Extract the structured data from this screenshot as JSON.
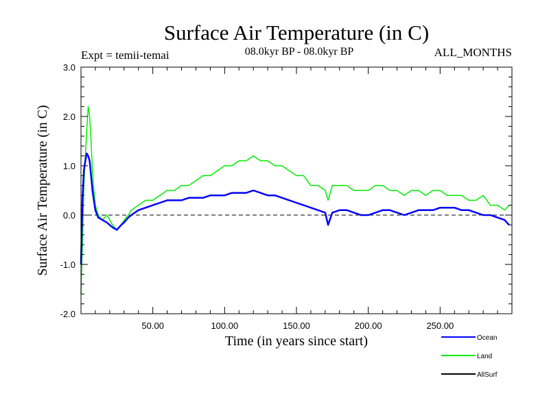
{
  "chart_data": {
    "type": "line",
    "title": "Surface Air Temperature (in C)",
    "subtitle_left": "Expt = temii-temai",
    "subtitle_center": "08.0kyr BP - 08.0kyr BP",
    "subtitle_right": "ALL_MONTHS",
    "xlabel": "Time (in years since start)",
    "ylabel": "Surface Air Temperature (in C)",
    "xlim": [
      0,
      300
    ],
    "ylim": [
      -2.0,
      3.0
    ],
    "x_ticks": [
      {
        "value": 50,
        "label": "50.00"
      },
      {
        "value": 100,
        "label": "100.00"
      },
      {
        "value": 150,
        "label": "150.00"
      },
      {
        "value": 200,
        "label": "200.00"
      },
      {
        "value": 250,
        "label": "250.00"
      }
    ],
    "y_ticks": [
      {
        "value": 3.0,
        "label": "3.0"
      },
      {
        "value": 2.0,
        "label": "2.0"
      },
      {
        "value": 1.0,
        "label": "1.0"
      },
      {
        "value": 0.0,
        "label": "0.0"
      },
      {
        "value": -1.0,
        "label": "-1.0"
      },
      {
        "value": -2.0,
        "label": "-2.0"
      }
    ],
    "reference_line": {
      "y": 0.0,
      "style": "dashed"
    },
    "legend_position": "bottom-right",
    "series": [
      {
        "name": "Land",
        "color": "#00ee00",
        "x": [
          0,
          1,
          2,
          3,
          4,
          5,
          6,
          7,
          8,
          9,
          10,
          12,
          15,
          18,
          20,
          22,
          25,
          28,
          30,
          33,
          35,
          40,
          45,
          50,
          55,
          60,
          65,
          70,
          75,
          80,
          85,
          90,
          95,
          100,
          105,
          110,
          115,
          120,
          125,
          130,
          135,
          140,
          145,
          150,
          155,
          160,
          165,
          170,
          172,
          175,
          180,
          185,
          190,
          195,
          200,
          205,
          210,
          215,
          220,
          225,
          230,
          235,
          240,
          245,
          250,
          255,
          260,
          265,
          270,
          275,
          280,
          285,
          290,
          295,
          298
        ],
        "values": [
          -1.6,
          -0.6,
          0.6,
          1.2,
          1.7,
          2.2,
          2.0,
          1.5,
          0.9,
          0.5,
          0.2,
          0.0,
          -0.1,
          0.0,
          -0.1,
          -0.2,
          -0.3,
          -0.2,
          -0.1,
          0.0,
          0.1,
          0.2,
          0.3,
          0.3,
          0.4,
          0.5,
          0.5,
          0.6,
          0.6,
          0.7,
          0.8,
          0.8,
          0.9,
          1.0,
          1.0,
          1.1,
          1.1,
          1.2,
          1.1,
          1.1,
          1.0,
          1.0,
          0.9,
          0.8,
          0.8,
          0.6,
          0.6,
          0.5,
          0.3,
          0.6,
          0.6,
          0.6,
          0.5,
          0.5,
          0.5,
          0.6,
          0.6,
          0.5,
          0.5,
          0.4,
          0.5,
          0.5,
          0.4,
          0.5,
          0.5,
          0.4,
          0.4,
          0.4,
          0.3,
          0.3,
          0.4,
          0.2,
          0.2,
          0.1,
          0.2
        ]
      },
      {
        "name": "Ocean",
        "color": "#0000ff",
        "x": [
          0,
          1,
          2,
          3,
          4,
          5,
          6,
          7,
          8,
          9,
          10,
          12,
          15,
          18,
          20,
          22,
          25,
          28,
          30,
          33,
          35,
          40,
          45,
          50,
          55,
          60,
          65,
          70,
          75,
          80,
          85,
          90,
          95,
          100,
          105,
          110,
          115,
          120,
          125,
          130,
          135,
          140,
          145,
          150,
          155,
          160,
          165,
          170,
          172,
          175,
          180,
          185,
          190,
          195,
          200,
          205,
          210,
          215,
          220,
          225,
          230,
          235,
          240,
          245,
          250,
          255,
          260,
          265,
          270,
          275,
          280,
          285,
          290,
          295,
          298
        ],
        "values": [
          -1.0,
          0.3,
          0.9,
          1.1,
          1.25,
          1.2,
          1.1,
          0.8,
          0.5,
          0.3,
          0.1,
          -0.05,
          -0.1,
          -0.15,
          -0.2,
          -0.25,
          -0.3,
          -0.2,
          -0.15,
          -0.05,
          0.0,
          0.1,
          0.15,
          0.2,
          0.25,
          0.3,
          0.3,
          0.3,
          0.35,
          0.35,
          0.35,
          0.4,
          0.4,
          0.4,
          0.45,
          0.45,
          0.45,
          0.5,
          0.45,
          0.4,
          0.4,
          0.35,
          0.3,
          0.25,
          0.2,
          0.15,
          0.1,
          0.05,
          -0.2,
          0.05,
          0.1,
          0.1,
          0.05,
          0.0,
          0.0,
          0.05,
          0.1,
          0.1,
          0.05,
          0.0,
          0.05,
          0.1,
          0.1,
          0.1,
          0.15,
          0.15,
          0.15,
          0.1,
          0.1,
          0.05,
          0.0,
          0.0,
          -0.05,
          -0.1,
          -0.2
        ]
      },
      {
        "name": "AllSurf",
        "color": "#000000",
        "x": [],
        "values": []
      }
    ],
    "legend": [
      {
        "name": "Ocean",
        "color": "#0000ff"
      },
      {
        "name": "Land",
        "color": "#00ee00"
      },
      {
        "name": "AllSurf",
        "color": "#000000"
      }
    ]
  }
}
